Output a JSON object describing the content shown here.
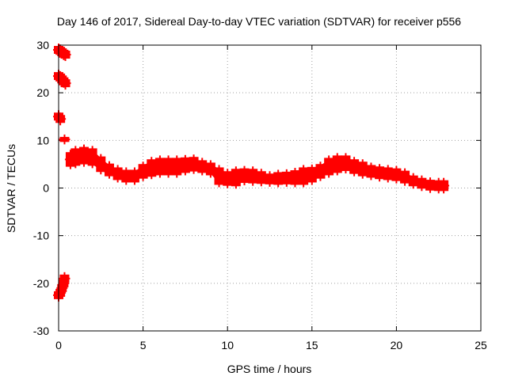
{
  "chart_data": {
    "type": "scatter",
    "title": "Day 146 of 2017, Sidereal Day-to-day VTEC variation (SDTVAR) for receiver p556",
    "xlabel": "GPS time / hours",
    "ylabel": "SDTVAR / TECUs",
    "xlim": [
      0,
      25
    ],
    "ylim": [
      -30,
      30
    ],
    "xticks": [
      0,
      5,
      10,
      15,
      20,
      25
    ],
    "yticks": [
      -30,
      -20,
      -10,
      0,
      10,
      20,
      30
    ],
    "grid": true,
    "marker_color": "#ff0000",
    "series": [
      {
        "name": "SDTVAR",
        "x": [
          0.0,
          0.1,
          0.2,
          0.3,
          0.4,
          0.0,
          0.1,
          0.2,
          0.3,
          0.4,
          0.0,
          0.1,
          0.35,
          0.0,
          0.1,
          0.2,
          0.3,
          0.35,
          0.7,
          1.0,
          1.5,
          2.0,
          2.5,
          3.0,
          3.5,
          4.0,
          4.5,
          5.0,
          5.5,
          6.0,
          6.5,
          7.0,
          7.5,
          8.0,
          8.5,
          9.0,
          9.5,
          10.0,
          10.5,
          11.0,
          11.5,
          12.0,
          12.5,
          13.0,
          13.5,
          14.0,
          14.5,
          15.0,
          15.5,
          16.0,
          16.5,
          17.0,
          17.5,
          18.0,
          18.5,
          19.0,
          19.5,
          20.0,
          20.5,
          21.0,
          21.5,
          22.0,
          22.5,
          22.8
        ],
        "y": [
          29.0,
          28.8,
          28.5,
          28.2,
          28.0,
          23.5,
          23.2,
          22.8,
          22.4,
          22.0,
          15.0,
          14.5,
          10.2,
          -22.5,
          -22.0,
          -21.0,
          -20.0,
          -19.0,
          6.0,
          6.5,
          6.8,
          6.5,
          5.0,
          3.8,
          3.0,
          2.5,
          2.5,
          3.5,
          4.2,
          4.5,
          4.5,
          4.5,
          4.8,
          5.0,
          4.5,
          4.0,
          2.5,
          2.0,
          2.2,
          2.6,
          2.5,
          2.2,
          1.9,
          2.0,
          2.1,
          2.2,
          2.5,
          2.8,
          3.5,
          4.5,
          5.0,
          5.2,
          4.5,
          4.0,
          3.5,
          3.2,
          3.0,
          2.8,
          2.3,
          1.5,
          1.0,
          0.6,
          0.5,
          0.5
        ],
        "spread": [
          0.5,
          0.5,
          0.5,
          0.5,
          0.5,
          0.5,
          0.5,
          0.5,
          0.5,
          0.5,
          0.5,
          0.5,
          0.2,
          0.5,
          0.5,
          0.5,
          0.5,
          0.5,
          1.2,
          1.5,
          1.5,
          1.5,
          1.3,
          1.0,
          1.0,
          1.0,
          1.0,
          1.2,
          1.5,
          1.5,
          1.5,
          1.5,
          1.3,
          1.2,
          1.0,
          1.0,
          1.5,
          1.2,
          1.5,
          1.2,
          1.2,
          1.0,
          0.8,
          1.0,
          1.0,
          1.2,
          1.5,
          1.3,
          1.2,
          1.5,
          1.5,
          1.3,
          1.2,
          1.2,
          1.0,
          1.0,
          1.0,
          1.0,
          1.0,
          0.8,
          0.8,
          0.8,
          0.8,
          0.8
        ]
      }
    ]
  }
}
